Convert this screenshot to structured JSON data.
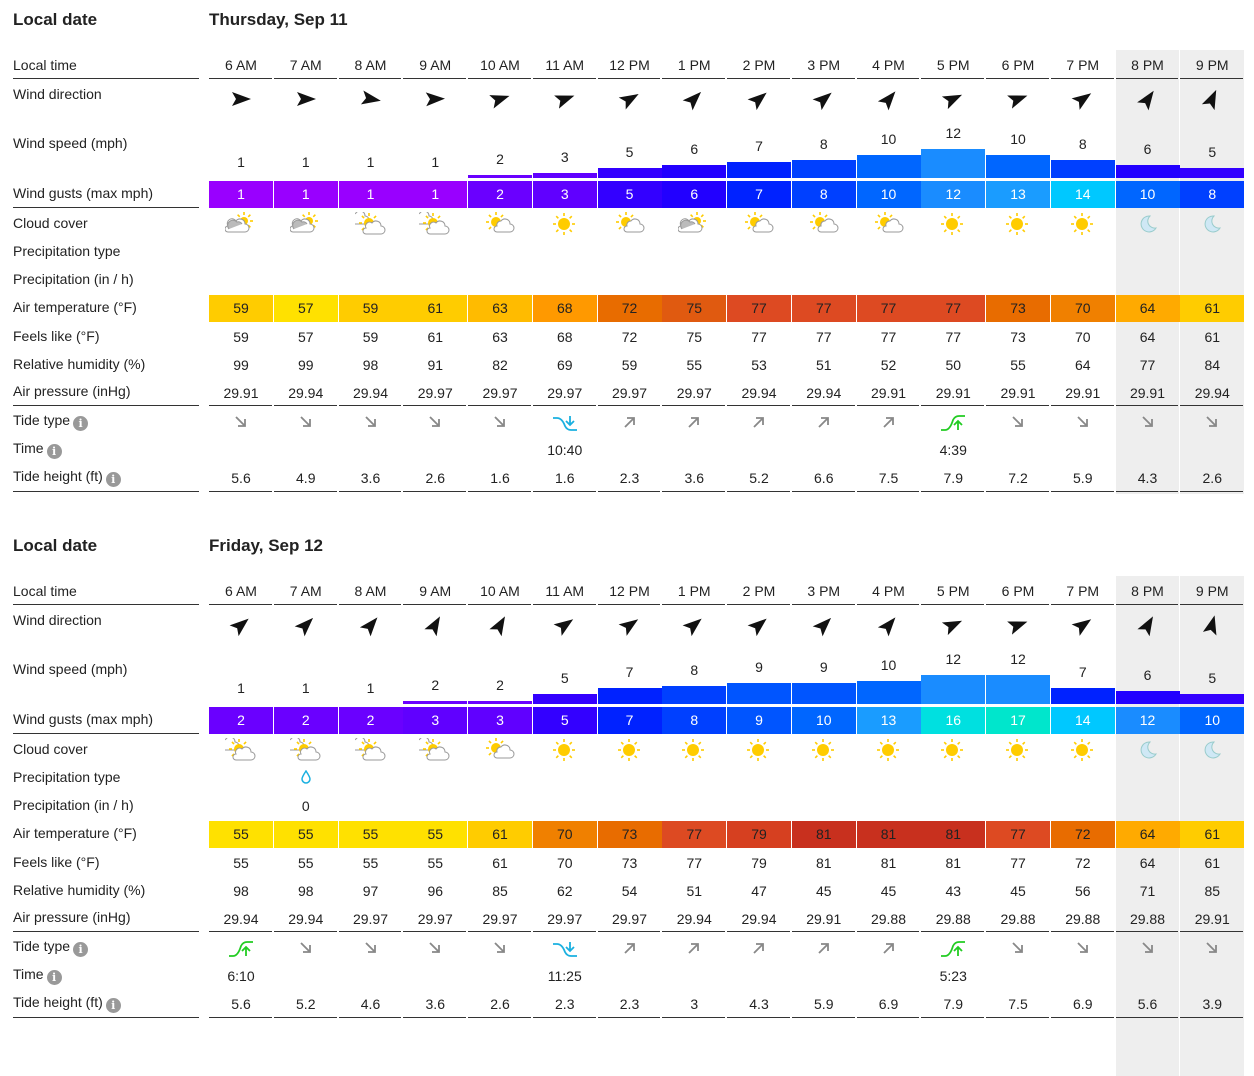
{
  "labels": {
    "local_date": "Local date",
    "local_time": "Local time",
    "wind_direction": "Wind direction",
    "wind_speed": "Wind speed (mph)",
    "wind_gusts": "Wind gusts (max mph)",
    "cloud_cover": "Cloud cover",
    "precip_type": "Precipitation type",
    "precip": "Precipitation (in / h)",
    "air_temp": "Air temperature (°F)",
    "feels_like": "Feels like (°F)",
    "humidity": "Relative humidity (%)",
    "pressure": "Air pressure (inHg)",
    "tide_type": "Tide type",
    "tide_time": "Time",
    "tide_height": "Tide height (ft)",
    "info_glyph": "i"
  },
  "times": [
    "6 AM",
    "7 AM",
    "8 AM",
    "9 AM",
    "10 AM",
    "11 AM",
    "12 PM",
    "1 PM",
    "2 PM",
    "3 PM",
    "4 PM",
    "5 PM",
    "6 PM",
    "7 PM",
    "8 PM",
    "9 PM"
  ],
  "night_columns": [
    14,
    15
  ],
  "days": [
    {
      "date": "Thursday, Sep 11",
      "wind_dir_deg": [
        90,
        90,
        100,
        88,
        72,
        70,
        60,
        45,
        50,
        50,
        40,
        65,
        70,
        55,
        35,
        25
      ],
      "wind_speed": [
        "1",
        "1",
        "1",
        "1",
        "2",
        "3",
        "5",
        "6",
        "7",
        "8",
        "10",
        "12",
        "10",
        "8",
        "6",
        "5"
      ],
      "wind_gusts": [
        "1",
        "1",
        "1",
        "1",
        "2",
        "3",
        "5",
        "6",
        "7",
        "8",
        "10",
        "12",
        "13",
        "14",
        "10",
        "8"
      ],
      "cloud": [
        "partly-cloudy",
        "partly-cloudy",
        "sun-clouds",
        "sun-clouds",
        "few-clouds",
        "sun",
        "few-clouds",
        "partly-cloudy",
        "few-clouds",
        "few-clouds",
        "few-clouds",
        "sun",
        "sun",
        "sun",
        "moon",
        "moon"
      ],
      "precip_type": [
        "",
        "",
        "",
        "",
        "",
        "",
        "",
        "",
        "",
        "",
        "",
        "",
        "",
        "",
        "",
        ""
      ],
      "precip": [
        "",
        "",
        "",
        "",
        "",
        "",
        "",
        "",
        "",
        "",
        "",
        "",
        "",
        "",
        "",
        ""
      ],
      "air_temp": [
        "59",
        "57",
        "59",
        "61",
        "63",
        "68",
        "72",
        "75",
        "77",
        "77",
        "77",
        "77",
        "73",
        "70",
        "64",
        "61"
      ],
      "feels_like": [
        "59",
        "57",
        "59",
        "61",
        "63",
        "68",
        "72",
        "75",
        "77",
        "77",
        "77",
        "77",
        "73",
        "70",
        "64",
        "61"
      ],
      "humidity": [
        "99",
        "99",
        "98",
        "91",
        "82",
        "69",
        "59",
        "55",
        "53",
        "51",
        "52",
        "50",
        "55",
        "64",
        "77",
        "84"
      ],
      "pressure": [
        "29.91",
        "29.94",
        "29.94",
        "29.97",
        "29.97",
        "29.97",
        "29.97",
        "29.97",
        "29.94",
        "29.94",
        "29.91",
        "29.91",
        "29.91",
        "29.91",
        "29.91",
        "29.94"
      ],
      "tide_type": [
        "falling",
        "falling",
        "falling",
        "falling",
        "falling",
        "low",
        "rising",
        "rising",
        "rising",
        "rising",
        "rising",
        "high",
        "falling",
        "falling",
        "falling",
        "falling"
      ],
      "tide_time": [
        "",
        "",
        "",
        "",
        "",
        "10:40",
        "",
        "",
        "",
        "",
        "",
        "4:39",
        "",
        "",
        "",
        ""
      ],
      "tide_height": [
        "5.6",
        "4.9",
        "3.6",
        "2.6",
        "1.6",
        "1.6",
        "2.3",
        "3.6",
        "5.2",
        "6.6",
        "7.5",
        "7.9",
        "7.2",
        "5.9",
        "4.3",
        "2.6"
      ]
    },
    {
      "date": "Friday, Sep 12",
      "wind_dir_deg": [
        50,
        45,
        40,
        30,
        30,
        55,
        55,
        50,
        50,
        45,
        40,
        65,
        70,
        55,
        30,
        15
      ],
      "wind_speed": [
        "1",
        "1",
        "1",
        "2",
        "2",
        "5",
        "7",
        "8",
        "9",
        "9",
        "10",
        "12",
        "12",
        "7",
        "6",
        "5"
      ],
      "wind_gusts": [
        "2",
        "2",
        "2",
        "3",
        "3",
        "5",
        "7",
        "8",
        "9",
        "10",
        "13",
        "16",
        "17",
        "14",
        "12",
        "10"
      ],
      "cloud": [
        "sun-clouds",
        "sun-clouds",
        "sun-clouds",
        "sun-clouds",
        "few-clouds",
        "sun",
        "sun",
        "sun",
        "sun",
        "sun",
        "sun",
        "sun",
        "sun",
        "sun",
        "moon",
        "moon"
      ],
      "precip_type": [
        "",
        "drop",
        "",
        "",
        "",
        "",
        "",
        "",
        "",
        "",
        "",
        "",
        "",
        "",
        "",
        ""
      ],
      "precip": [
        "",
        "0",
        "",
        "",
        "",
        "",
        "",
        "",
        "",
        "",
        "",
        "",
        "",
        "",
        "",
        ""
      ],
      "air_temp": [
        "55",
        "55",
        "55",
        "55",
        "61",
        "70",
        "73",
        "77",
        "79",
        "81",
        "81",
        "81",
        "77",
        "72",
        "64",
        "61"
      ],
      "feels_like": [
        "55",
        "55",
        "55",
        "55",
        "61",
        "70",
        "73",
        "77",
        "79",
        "81",
        "81",
        "81",
        "77",
        "72",
        "64",
        "61"
      ],
      "humidity": [
        "98",
        "98",
        "97",
        "96",
        "85",
        "62",
        "54",
        "51",
        "47",
        "45",
        "45",
        "43",
        "45",
        "56",
        "71",
        "85"
      ],
      "pressure": [
        "29.94",
        "29.94",
        "29.97",
        "29.97",
        "29.97",
        "29.97",
        "29.97",
        "29.94",
        "29.94",
        "29.91",
        "29.88",
        "29.88",
        "29.88",
        "29.88",
        "29.88",
        "29.91"
      ],
      "tide_type": [
        "high",
        "falling",
        "falling",
        "falling",
        "falling",
        "low",
        "rising",
        "rising",
        "rising",
        "rising",
        "rising",
        "high",
        "falling",
        "falling",
        "falling",
        "falling"
      ],
      "tide_time": [
        "6:10",
        "",
        "",
        "",
        "",
        "11:25",
        "",
        "",
        "",
        "",
        "",
        "5:23",
        "",
        "",
        "",
        ""
      ],
      "tide_height": [
        "5.6",
        "5.2",
        "4.6",
        "3.6",
        "2.6",
        "2.3",
        "2.3",
        "3",
        "4.3",
        "5.9",
        "6.9",
        "7.9",
        "7.5",
        "6.9",
        "5.6",
        "3.9"
      ]
    }
  ],
  "colors": {
    "night_bg": "#eeeeee",
    "tide_low": "#1ab0e0",
    "tide_high": "#22cc22",
    "tide_arrow": "#888888",
    "sun": "#ffcc00"
  }
}
